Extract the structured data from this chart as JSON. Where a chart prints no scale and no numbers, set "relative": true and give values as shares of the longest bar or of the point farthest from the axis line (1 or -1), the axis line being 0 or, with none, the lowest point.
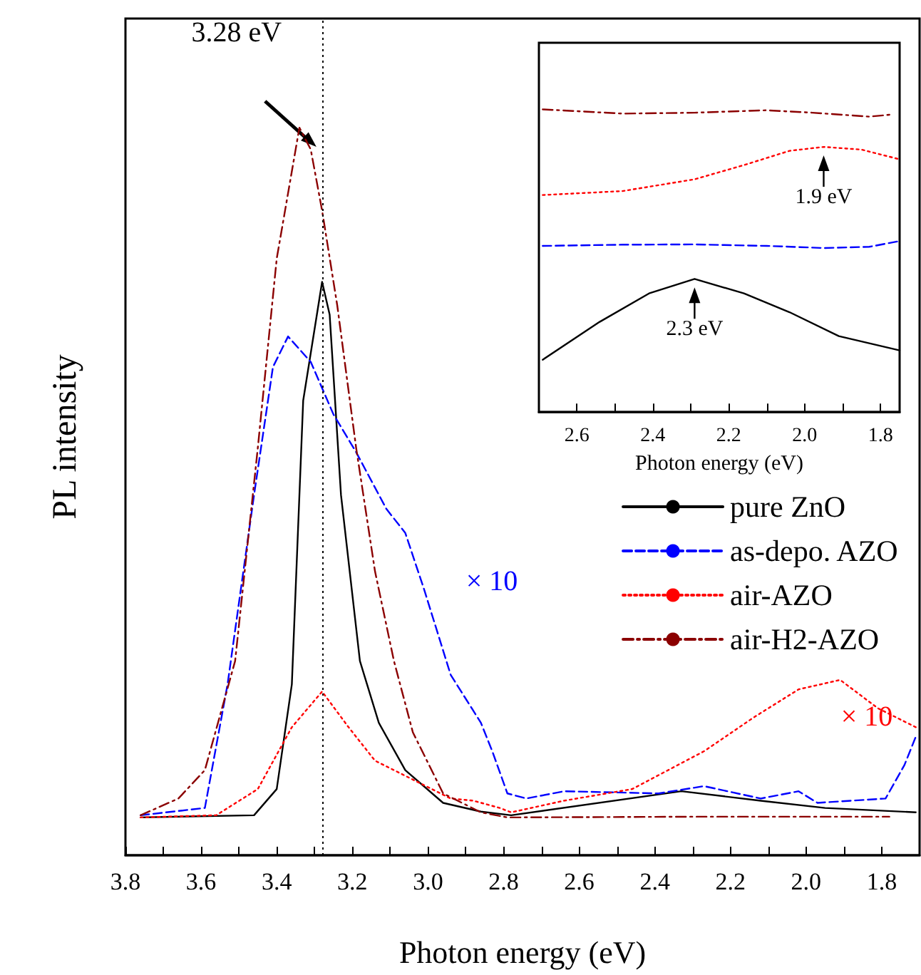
{
  "chart_data": [
    {
      "type": "line",
      "xlabel": "Photon energy (eV)",
      "ylabel": "PL intensity",
      "relative": true,
      "legend": "right",
      "xlim": [
        3.8,
        1.7
      ],
      "xticks": [
        3.8,
        {
          "value": 3.7,
          "label": null
        },
        3.6,
        {
          "value": 3.5,
          "label": null
        },
        3.4,
        {
          "value": 3.3,
          "label": null
        },
        3.2,
        {
          "value": 3.1,
          "label": null
        },
        {
          "value": 3.0,
          "label": "3.0"
        },
        {
          "value": 2.9,
          "label": null
        },
        2.8,
        {
          "value": 2.7,
          "label": null
        },
        2.6,
        {
          "value": 2.5,
          "label": null
        },
        2.4,
        {
          "value": 2.3,
          "label": null
        },
        2.2,
        {
          "value": 2.1,
          "label": null
        },
        {
          "value": 2.0,
          "label": "2.0"
        },
        {
          "value": 1.9,
          "label": null
        },
        1.8
      ],
      "ylim": [
        0,
        1.15
      ],
      "ref_lines": [
        {
          "axis": "x",
          "value": 3.28,
          "label": "3.28 eV",
          "color": "#000000",
          "line_style": "dotted"
        }
      ],
      "annotations": [
        "× 10",
        "× 10"
      ],
      "series": [
        {
          "name": "pure ZnO",
          "color": "#000000",
          "line_style": "solid",
          "x": [
            3.76,
            3.46,
            3.4,
            3.36,
            3.33,
            3.28,
            3.26,
            3.23,
            3.18,
            3.13,
            3.06,
            2.96,
            2.86,
            2.78,
            2.33,
            2.12,
            1.95,
            1.71
          ],
          "values": [
            0.052,
            0.055,
            0.091,
            0.235,
            0.625,
            0.788,
            0.743,
            0.495,
            0.267,
            0.182,
            0.117,
            0.072,
            0.06,
            0.055,
            0.088,
            0.075,
            0.065,
            0.059
          ]
        },
        {
          "name": "as-depo. AZO",
          "color": "#0000ff",
          "line_style": "dashed",
          "x": [
            3.76,
            3.59,
            3.53,
            3.46,
            3.41,
            3.37,
            3.31,
            3.25,
            3.19,
            3.11,
            3.06,
            3.01,
            2.94,
            2.86,
            2.83,
            2.79,
            2.74,
            2.64,
            2.39,
            2.27,
            2.12,
            2.02,
            1.97,
            1.79,
            1.74,
            1.71
          ],
          "values": [
            0.055,
            0.065,
            0.235,
            0.495,
            0.671,
            0.713,
            0.678,
            0.606,
            0.554,
            0.476,
            0.443,
            0.365,
            0.248,
            0.182,
            0.143,
            0.085,
            0.078,
            0.088,
            0.085,
            0.095,
            0.078,
            0.088,
            0.072,
            0.078,
            0.124,
            0.163
          ]
        },
        {
          "name": "air-AZO",
          "color": "#ff0000",
          "line_style": "dotted",
          "x": [
            3.76,
            3.56,
            3.45,
            3.36,
            3.28,
            3.21,
            3.14,
            3.04,
            2.94,
            2.88,
            2.81,
            2.78,
            2.64,
            2.46,
            2.27,
            2.14,
            2.02,
            1.91,
            1.81,
            1.71
          ],
          "values": [
            0.052,
            0.055,
            0.091,
            0.176,
            0.225,
            0.176,
            0.13,
            0.104,
            0.078,
            0.075,
            0.065,
            0.059,
            0.075,
            0.091,
            0.143,
            0.189,
            0.228,
            0.241,
            0.202,
            0.176
          ]
        },
        {
          "name": "air-H2-AZO",
          "color": "#8b0000",
          "line_style": "dashdot",
          "x": [
            3.76,
            3.66,
            3.59,
            3.51,
            3.45,
            3.4,
            3.34,
            3.31,
            3.28,
            3.24,
            3.19,
            3.14,
            3.09,
            3.04,
            2.96,
            2.86,
            2.79,
            2.3,
            1.78
          ],
          "values": [
            0.055,
            0.078,
            0.117,
            0.267,
            0.56,
            0.82,
            1.0,
            0.97,
            0.886,
            0.756,
            0.56,
            0.39,
            0.267,
            0.169,
            0.085,
            0.059,
            0.052,
            0.053,
            0.053
          ]
        }
      ]
    },
    {
      "type": "line",
      "xlabel": "Photon energy (eV)",
      "relative": true,
      "tick_labels": "x",
      "xlim": [
        2.7,
        1.75
      ],
      "xticks": [
        2.6,
        {
          "value": 2.5,
          "label": null
        },
        2.4,
        {
          "value": 2.3,
          "label": null
        },
        2.2,
        {
          "value": 2.1,
          "label": null
        },
        {
          "value": 2.0,
          "label": "2.0"
        },
        {
          "value": 1.9,
          "label": null
        },
        1.8
      ],
      "ylim": [
        0,
        1.22
      ],
      "annotations": [
        {
          "text": "1.9 eV",
          "x": 1.95,
          "y": 0.876
        },
        {
          "text": "2.3 eV",
          "x": 2.29,
          "y": 0.44
        }
      ],
      "series": [
        {
          "color": "#000000",
          "line_style": "solid",
          "x": [
            2.69,
            2.54,
            2.41,
            2.29,
            2.16,
            2.04,
            1.91,
            1.75
          ],
          "values": [
            0.173,
            0.298,
            0.392,
            0.44,
            0.392,
            0.33,
            0.251,
            0.204
          ]
        },
        {
          "color": "#0000ff",
          "line_style": "dashed",
          "x": [
            2.69,
            2.48,
            2.29,
            2.1,
            1.95,
            1.83,
            1.75
          ],
          "values": [
            0.549,
            0.553,
            0.554,
            0.549,
            0.542,
            0.546,
            0.565
          ]
        },
        {
          "color": "#ff0000",
          "line_style": "dotted",
          "x": [
            2.69,
            2.48,
            2.29,
            2.16,
            2.04,
            1.95,
            1.85,
            1.75
          ],
          "values": [
            0.717,
            0.73,
            0.769,
            0.816,
            0.863,
            0.876,
            0.867,
            0.835
          ]
        },
        {
          "color": "#8b0000",
          "line_style": "dashdot",
          "x": [
            2.69,
            2.48,
            2.29,
            2.1,
            1.98,
            1.83,
            1.77
          ],
          "values": [
            1.0,
            0.986,
            0.989,
            0.997,
            0.989,
            0.976,
            0.983
          ]
        }
      ]
    }
  ]
}
